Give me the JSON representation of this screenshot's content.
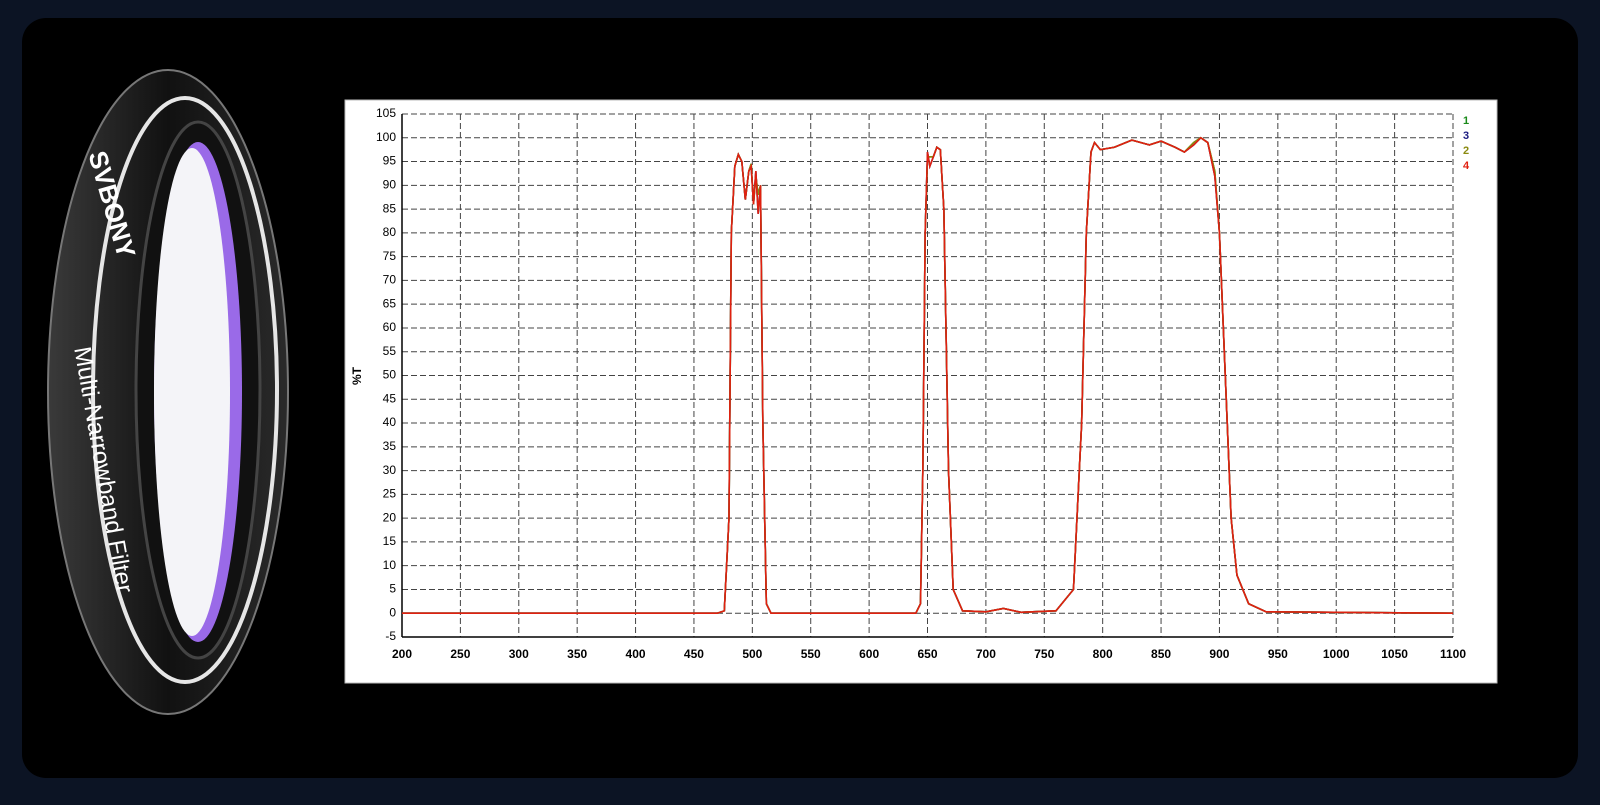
{
  "product": {
    "brand": "SVBONY",
    "name": "Multi-Narrowband Filter"
  },
  "chart_data": {
    "type": "line",
    "y_label": "%T",
    "x": [
      200,
      470,
      476,
      480,
      482,
      485,
      488,
      491,
      494,
      497,
      499,
      501,
      503,
      505,
      507,
      509,
      512,
      516,
      640,
      644,
      646,
      648,
      650,
      652,
      655,
      658,
      661,
      664,
      668,
      672,
      680,
      700,
      715,
      730,
      760,
      775,
      782,
      786,
      790,
      793,
      798,
      810,
      825,
      840,
      850,
      862,
      870,
      878,
      884,
      890,
      896,
      900,
      905,
      910,
      915,
      925,
      940,
      1100
    ],
    "series": [
      {
        "name": "1",
        "color": "#1a8a1a",
        "values": [
          0,
          0,
          0.5,
          20,
          80,
          94,
          96.5,
          95,
          87,
          93,
          94.5,
          86,
          92,
          88,
          90,
          40,
          2,
          0,
          0,
          2,
          30,
          80,
          96,
          96,
          96,
          98,
          97.5,
          85,
          30,
          5,
          0.5,
          0.3,
          1,
          0.2,
          0.5,
          5,
          40,
          80,
          97,
          99,
          97.5,
          98,
          99.5,
          98.5,
          99.3,
          98,
          97,
          99,
          100,
          99,
          93,
          80,
          50,
          20,
          8,
          2,
          0.3,
          0
        ]
      },
      {
        "name": "3",
        "color": "#1a1a80",
        "values": [
          0,
          0,
          0.5,
          20,
          80,
          94,
          96.5,
          95,
          87,
          93,
          94,
          86,
          93,
          84,
          90,
          40,
          2,
          0,
          0,
          2,
          30,
          80,
          97,
          94,
          96,
          98,
          97.5,
          85,
          30,
          5,
          0.5,
          0.3,
          1,
          0.2,
          0.5,
          5,
          40,
          80,
          97,
          99,
          97.5,
          98,
          99.5,
          98.5,
          99.3,
          98,
          97,
          98.5,
          100,
          99,
          92,
          80,
          50,
          20,
          8,
          2,
          0.3,
          0
        ]
      },
      {
        "name": "2",
        "color": "#8a8a10",
        "values": [
          0,
          0,
          0.5,
          20,
          80,
          94,
          96.5,
          95,
          87,
          93,
          94.5,
          86,
          92,
          88,
          90,
          40,
          2,
          0,
          0,
          2,
          30,
          80,
          96,
          96,
          96,
          98,
          97.5,
          85,
          30,
          5,
          0.5,
          0.3,
          1,
          0.2,
          0.5,
          5,
          40,
          80,
          97,
          99,
          97.5,
          98,
          99.5,
          98.5,
          99.3,
          98,
          97,
          99,
          100,
          99,
          93,
          80,
          50,
          20,
          8,
          2,
          0.3,
          0
        ]
      },
      {
        "name": "4",
        "color": "#e02010",
        "values": [
          0,
          0,
          0.5,
          20,
          80,
          94,
          96.5,
          95,
          87,
          93,
          94,
          86,
          93,
          84,
          90,
          40,
          2,
          0,
          0,
          2,
          30,
          80,
          97,
          94,
          96,
          98,
          97.5,
          85,
          30,
          5,
          0.5,
          0.3,
          1,
          0.2,
          0.5,
          5,
          40,
          80,
          97,
          99,
          97.5,
          98,
          99.5,
          98.5,
          99.3,
          98,
          97,
          98.5,
          100,
          99,
          92,
          80,
          50,
          20,
          8,
          2,
          0.3,
          0
        ]
      }
    ],
    "xlim": [
      200,
      1100
    ],
    "xticks": [
      200,
      250,
      300,
      350,
      400,
      450,
      500,
      550,
      600,
      650,
      700,
      750,
      800,
      850,
      900,
      950,
      1000,
      1050,
      1100
    ],
    "ylim": [
      -5,
      105
    ],
    "yticks": [
      -5,
      0,
      5,
      10,
      15,
      20,
      25,
      30,
      35,
      40,
      45,
      50,
      55,
      60,
      65,
      70,
      75,
      80,
      85,
      90,
      95,
      100,
      105
    ],
    "grid": true
  }
}
